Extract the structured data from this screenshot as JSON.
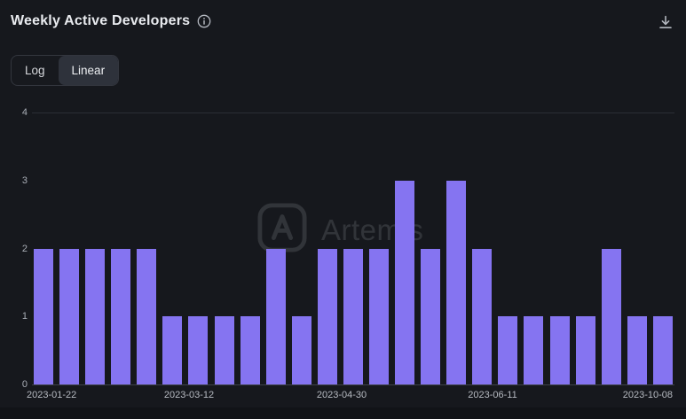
{
  "header": {
    "title": "Weekly Active Developers"
  },
  "toggle": {
    "options": [
      {
        "label": "Log",
        "selected": false
      },
      {
        "label": "Linear",
        "selected": true
      }
    ]
  },
  "watermark": {
    "text": "Artemis"
  },
  "colors": {
    "background": "#16181d",
    "bar": "#8574f1",
    "gridline": "#2b2e35",
    "baseline": "#3e424a",
    "axis_text": "#a9aeb6",
    "title_text": "#e9ebef"
  },
  "chart_data": {
    "type": "bar",
    "title": "Weekly Active Developers",
    "values": [
      2,
      2,
      2,
      2,
      2,
      1,
      1,
      1,
      1,
      2,
      1,
      2,
      2,
      2,
      3,
      2,
      3,
      2,
      1,
      1,
      1,
      1,
      2,
      1,
      1
    ],
    "ylim": [
      0,
      4
    ],
    "y_ticks": [
      0,
      1,
      2,
      3,
      4
    ],
    "x_tick_labels": [
      "2023-01-22",
      "2023-03-12",
      "2023-04-30",
      "2023-06-11",
      "2023-10-08"
    ],
    "xlabel": "",
    "ylabel": "",
    "grid": "horizontal gridline at y=4 plus baseline at y=0",
    "legend": "none",
    "scale": "linear"
  }
}
